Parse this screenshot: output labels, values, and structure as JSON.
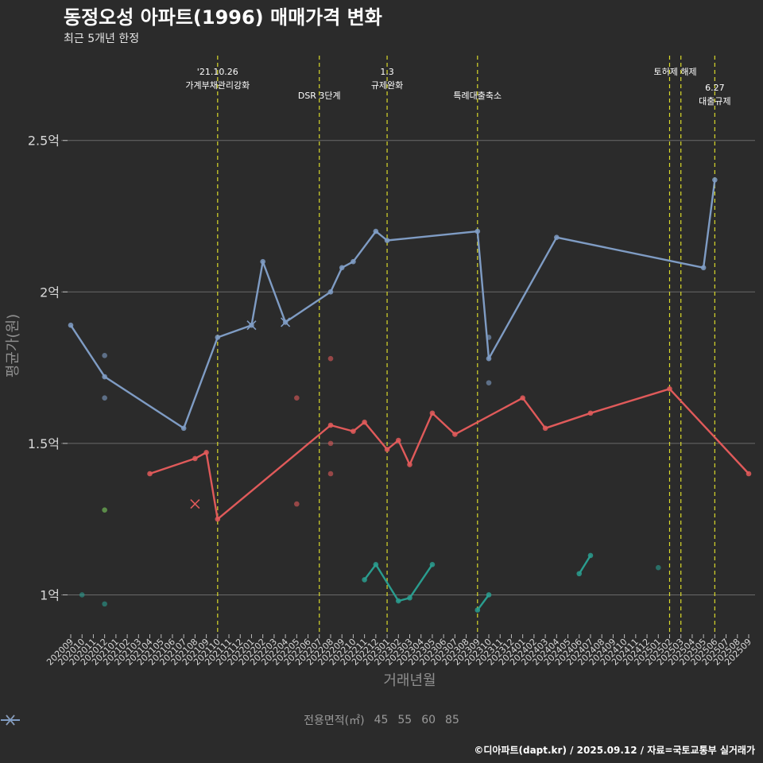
{
  "title": "동정오성 아파트(1996) 매매가격 변화",
  "subtitle": "최근 5개년 한정",
  "caption": "©디아파트(dapt.kr) / 2025.09.12 / 자료=국토교통부 실거래가",
  "chart_data": {
    "type": "line",
    "xlabel": "거래년월",
    "ylabel": "평균가(원)",
    "y_ticks": [
      {
        "value": 1.0,
        "label": "1억"
      },
      {
        "value": 1.5,
        "label": "1.5억"
      },
      {
        "value": 2.0,
        "label": "2억"
      },
      {
        "value": 2.5,
        "label": "2.5억"
      }
    ],
    "y_unit": "억원",
    "ylim": [
      0.87,
      2.78
    ],
    "categories": [
      "202009",
      "202010",
      "202011",
      "202012",
      "202101",
      "202102",
      "202103",
      "202104",
      "202105",
      "202106",
      "202107",
      "202108",
      "202109",
      "202110",
      "202111",
      "202112",
      "202201",
      "202202",
      "202203",
      "202204",
      "202205",
      "202206",
      "202207",
      "202208",
      "202209",
      "202210",
      "202211",
      "202212",
      "202301",
      "202302",
      "202303",
      "202304",
      "202305",
      "202306",
      "202307",
      "202308",
      "202309",
      "202310",
      "202311",
      "202312",
      "202401",
      "202402",
      "202403",
      "202404",
      "202405",
      "202406",
      "202407",
      "202408",
      "202409",
      "202410",
      "202411",
      "202412",
      "202501",
      "202502",
      "202503",
      "202504",
      "202505",
      "202506",
      "202507",
      "202508",
      "202509"
    ],
    "legend_title": "전용면적(㎡)",
    "series": [
      {
        "name": "45",
        "color": "#2a9d8f",
        "line": [
          [
            "202211",
            1.05
          ],
          [
            "202212",
            1.1
          ],
          [
            "202302",
            0.98
          ],
          [
            "202303",
            0.99
          ],
          [
            "202305",
            1.1
          ],
          [
            "202309",
            0.95
          ],
          [
            "202310",
            1.0
          ],
          [
            "202406",
            1.07
          ],
          [
            "202407",
            1.13
          ]
        ],
        "points": [
          [
            "202010",
            1.0
          ],
          [
            "202012",
            0.97
          ],
          [
            "202501",
            1.09
          ]
        ],
        "x_marks": []
      },
      {
        "name": "55",
        "color": "#7ccd5d",
        "line": [],
        "points": [
          [
            "202012",
            1.28
          ]
        ],
        "x_marks": []
      },
      {
        "name": "60",
        "color": "#e05a5a",
        "line": [
          [
            "202104",
            1.4
          ],
          [
            "202108",
            1.45
          ],
          [
            "202109",
            1.47
          ],
          [
            "202110",
            1.25
          ],
          [
            "202208",
            1.56
          ],
          [
            "202210",
            1.54
          ],
          [
            "202211",
            1.57
          ],
          [
            "202301",
            1.48
          ],
          [
            "202302",
            1.51
          ],
          [
            "202303",
            1.43
          ],
          [
            "202305",
            1.6
          ],
          [
            "202307",
            1.53
          ],
          [
            "202401",
            1.65
          ],
          [
            "202403",
            1.55
          ],
          [
            "202407",
            1.6
          ],
          [
            "202502",
            1.68
          ],
          [
            "202509",
            1.4
          ]
        ],
        "points": [
          [
            "202205",
            1.65
          ],
          [
            "202205",
            1.3
          ],
          [
            "202208",
            1.78
          ],
          [
            "202208",
            1.5
          ],
          [
            "202208",
            1.4
          ]
        ],
        "x_marks": [
          [
            "202108",
            1.3
          ]
        ]
      },
      {
        "name": "85",
        "color": "#7f9cc4",
        "line": [
          [
            "202009",
            1.89
          ],
          [
            "202012",
            1.72
          ],
          [
            "202107",
            1.55
          ],
          [
            "202110",
            1.85
          ],
          [
            "202201",
            1.89
          ],
          [
            "202202",
            2.1
          ],
          [
            "202204",
            1.9
          ],
          [
            "202208",
            2.0
          ],
          [
            "202209",
            2.08
          ],
          [
            "202210",
            2.1
          ],
          [
            "202212",
            2.2
          ],
          [
            "202301",
            2.17
          ],
          [
            "202309",
            2.2
          ],
          [
            "202310",
            1.78
          ],
          [
            "202404",
            2.18
          ],
          [
            "202505",
            2.08
          ],
          [
            "202506",
            2.37
          ]
        ],
        "points": [
          [
            "202012",
            1.79
          ],
          [
            "202012",
            1.65
          ],
          [
            "202310",
            1.85
          ],
          [
            "202310",
            1.7
          ]
        ],
        "x_marks": [
          [
            "202201",
            1.89
          ],
          [
            "202204",
            1.9
          ]
        ]
      }
    ],
    "annotations": [
      {
        "x": "202110",
        "lines": [
          "'21.10.26",
          "가계부채관리강화"
        ],
        "level": 0
      },
      {
        "x": "202207",
        "lines": [
          "DSR 3단계"
        ],
        "level": 1
      },
      {
        "x": "202301",
        "lines": [
          "1.3",
          "규제완화"
        ],
        "level": 0
      },
      {
        "x": "202309",
        "lines": [
          "특례대출축소"
        ],
        "level": 1
      },
      {
        "x": "202502",
        "lines": [
          "토허제 해제"
        ],
        "level": 0,
        "anchor": "202503"
      },
      {
        "x": "202503",
        "lines": [],
        "level": 0
      },
      {
        "x": "202506",
        "lines": [
          "6.27",
          "대출규제"
        ],
        "level": 1
      }
    ]
  }
}
